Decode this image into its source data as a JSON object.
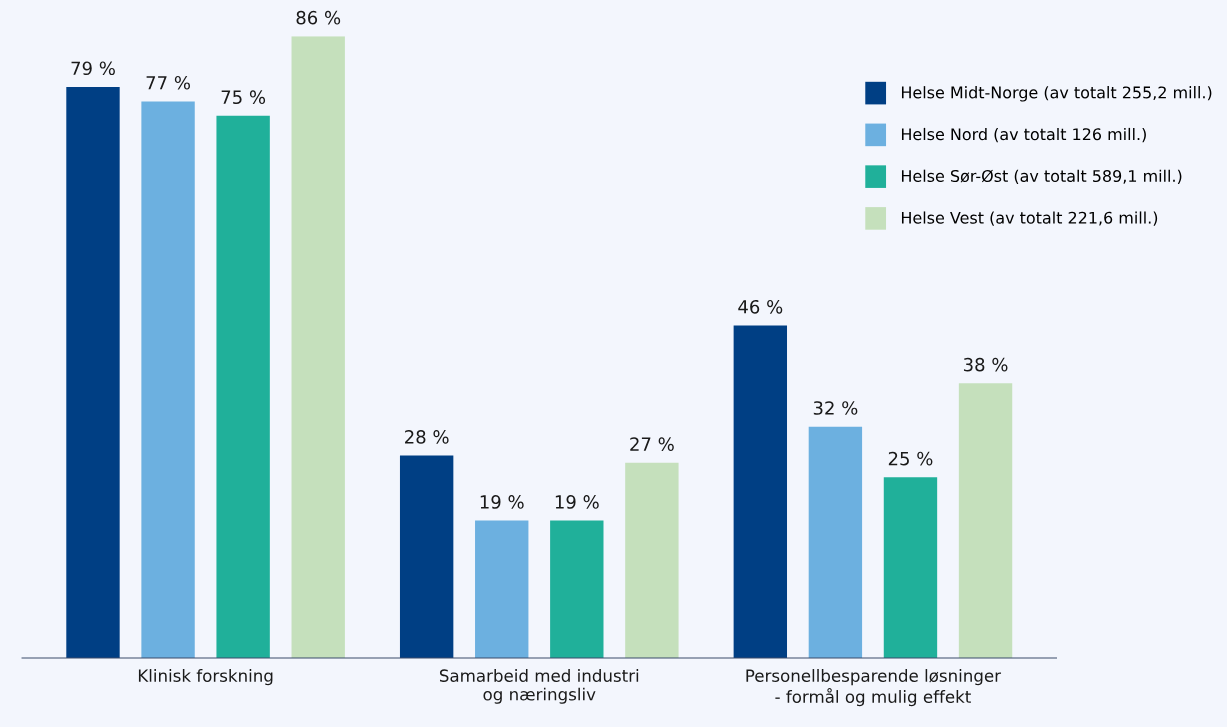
{
  "chart_data": {
    "type": "bar",
    "categories": [
      "Klinisk forskning",
      "Samarbeid med industri\nog næringsliv",
      "Personellbesparende løsninger\n- formål og mulig effekt"
    ],
    "series": [
      {
        "name": "Helse Midt-Norge (av totalt 255,2 mill.)",
        "color": "#003f84",
        "values": [
          79,
          28,
          46
        ],
        "value_labels": [
          "79 %",
          "28 %",
          "46 %"
        ]
      },
      {
        "name": "Helse Nord (av totalt 126 mill.)",
        "color": "#6cb0e0",
        "values": [
          77,
          19,
          32
        ],
        "value_labels": [
          "77 %",
          "19 %",
          "32 %"
        ]
      },
      {
        "name": "Helse Sør-Øst (av totalt 589,1 mill.)",
        "color": "#20b09a",
        "values": [
          75,
          19,
          25
        ],
        "value_labels": [
          "75 %",
          "19 %",
          "25 %"
        ]
      },
      {
        "name": "Helse Vest (av totalt 221,6 mill.)",
        "color": "#c5e0bc",
        "values": [
          86,
          27,
          38
        ],
        "value_labels": [
          "86 %",
          "27 %",
          "38 %"
        ]
      }
    ],
    "legend": "top right",
    "grid": false,
    "tick_labels": "x"
  }
}
